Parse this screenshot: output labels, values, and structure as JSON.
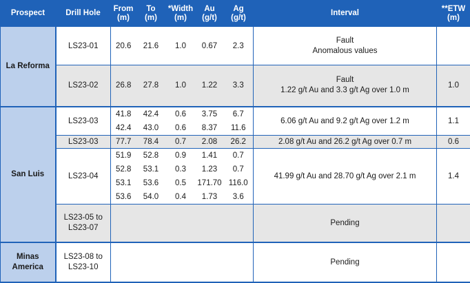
{
  "headers": {
    "prospect": "Prospect",
    "drill_hole": "Drill Hole",
    "from": [
      "From",
      "(m)"
    ],
    "to": [
      "To",
      "(m)"
    ],
    "width": [
      "*Width",
      "(m)"
    ],
    "au": [
      "Au",
      "(g/t)"
    ],
    "ag": [
      "Ag",
      "(g/t)"
    ],
    "interval": "Interval",
    "etw": [
      "**ETW",
      "(m)"
    ]
  },
  "groups": {
    "la_reforma": "La Reforma",
    "san_luis": "San Luis",
    "minas_america": [
      "Minas",
      "America"
    ]
  },
  "rows": {
    "ls23_01": {
      "hole": "LS23-01",
      "from": "20.6",
      "to": "21.6",
      "width": "1.0",
      "au": "0.67",
      "ag": "2.3",
      "interval": [
        "Fault",
        "Anomalous values"
      ],
      "etw": ""
    },
    "ls23_02": {
      "hole": "LS23-02",
      "from": "26.8",
      "to": "27.8",
      "width": "1.0",
      "au": "1.22",
      "ag": "3.3",
      "interval": [
        "Fault",
        "1.22 g/t Au and 3.3 g/t Ag over 1.0 m"
      ],
      "etw": "1.0"
    },
    "ls23_03a": {
      "hole": "LS23-03",
      "from": [
        "41.8",
        "42.4"
      ],
      "to": [
        "42.4",
        "43.0"
      ],
      "width": [
        "0.6",
        "0.6"
      ],
      "au": [
        "3.75",
        "8.37"
      ],
      "ag": [
        "6.7",
        "11.6"
      ],
      "interval": "6.06 g/t Au and 9.2 g/t Ag over 1.2 m",
      "etw": "1.1"
    },
    "ls23_03b": {
      "hole": "LS23-03",
      "from": "77.7",
      "to": "78.4",
      "width": "0.7",
      "au": "2.08",
      "ag": "26.2",
      "interval": "2.08 g/t Au and 26.2 g/t Ag over 0.7 m",
      "etw": "0.6"
    },
    "ls23_04": {
      "hole": "LS23-04",
      "from": [
        "51.9",
        "52.8",
        "53.1",
        "53.6"
      ],
      "to": [
        "52.8",
        "53.1",
        "53.6",
        "54.0"
      ],
      "width": [
        "0.9",
        "0.3",
        "0.5",
        "0.4"
      ],
      "au": [
        "1.41",
        "1.23",
        "171.70",
        "1.73"
      ],
      "ag": [
        "0.7",
        "0.7",
        "116.0",
        "3.6"
      ],
      "interval": "41.99 g/t Au and 28.70 g/t Ag over 2.1 m",
      "etw": "1.4"
    },
    "ls23_05_07": {
      "hole": [
        "LS23-05 to",
        "LS23-07"
      ],
      "interval": "Pending"
    },
    "ls23_08_10": {
      "hole": [
        "LS23-08 to",
        "LS23-10"
      ],
      "interval": "Pending"
    }
  },
  "colors": {
    "header_bg": "#1f62b8",
    "prospect_bg": "#bcd0ec",
    "grey_row": "#e6e6e6",
    "border": "#1f62b8"
  }
}
